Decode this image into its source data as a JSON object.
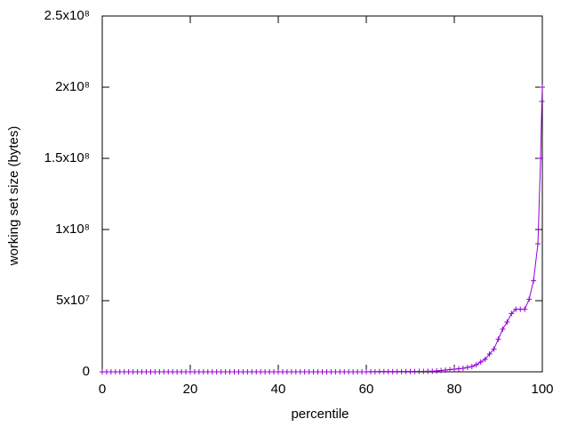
{
  "chart_data": {
    "type": "line",
    "xlabel": "percentile",
    "ylabel": "working set size (bytes)",
    "x": [
      0,
      1,
      2,
      3,
      4,
      5,
      6,
      7,
      8,
      9,
      10,
      11,
      12,
      13,
      14,
      15,
      16,
      17,
      18,
      19,
      20,
      21,
      22,
      23,
      24,
      25,
      26,
      27,
      28,
      29,
      30,
      31,
      32,
      33,
      34,
      35,
      36,
      37,
      38,
      39,
      40,
      41,
      42,
      43,
      44,
      45,
      46,
      47,
      48,
      49,
      50,
      51,
      52,
      53,
      54,
      55,
      56,
      57,
      58,
      59,
      60,
      61,
      62,
      63,
      64,
      65,
      66,
      67,
      68,
      69,
      70,
      71,
      72,
      73,
      74,
      75,
      76,
      77,
      78,
      79,
      80,
      81,
      82,
      83,
      84,
      85,
      86,
      87,
      88,
      89,
      90,
      91,
      92,
      93,
      94,
      95,
      96,
      97,
      98,
      99,
      99.6,
      99.9,
      100
    ],
    "series": [
      {
        "color": "#9400d3",
        "values": [
          0,
          0,
          0,
          0,
          0,
          0,
          0,
          0,
          0,
          0,
          0,
          0,
          0,
          0,
          0,
          0,
          0,
          0,
          0,
          0,
          0,
          0,
          0,
          0,
          0,
          0,
          0,
          0,
          0,
          0,
          0,
          0,
          0,
          0,
          0,
          0,
          0,
          0,
          0,
          0,
          0,
          0,
          0,
          0,
          0,
          0,
          0,
          0,
          0,
          0,
          0,
          0,
          0,
          0,
          0,
          0,
          0,
          0,
          0,
          0,
          0,
          100000,
          110000,
          120000,
          130000,
          140000,
          150000,
          170000,
          190000,
          210000,
          230000,
          260000,
          290000,
          320000,
          360000,
          400000,
          600000,
          900000,
          1250000,
          1600000,
          1900000,
          2200000,
          2500000,
          3100000,
          3750000,
          5000000,
          6900000,
          8800000,
          12500000,
          16000000,
          23000000,
          30000000,
          35000000,
          41000000,
          44000000,
          44000000,
          44000000,
          51000000,
          64000000,
          90000000,
          150000000,
          190000000,
          200000000
        ]
      }
    ],
    "xlim": [
      0,
      100
    ],
    "xticks": [
      0,
      20,
      40,
      60,
      80,
      100
    ],
    "ylim": [
      0,
      250000000
    ],
    "yticks": [
      0,
      {
        "value": 50000000,
        "label": "5x10⁷"
      },
      {
        "value": 100000000,
        "label": "1x10⁸"
      },
      {
        "value": 150000000,
        "label": "1.5x10⁸"
      },
      {
        "value": 200000000,
        "label": "2x10⁸"
      },
      {
        "value": 250000000,
        "label": "2.5x10⁸"
      }
    ]
  }
}
